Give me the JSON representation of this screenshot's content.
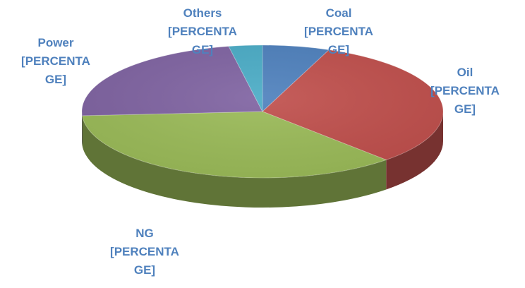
{
  "chart_data": {
    "type": "pie",
    "style": "3d",
    "categories": [
      "Coal",
      "Oil",
      "NG",
      "Power",
      "Others"
    ],
    "values": [
      6,
      32,
      36,
      23,
      3
    ],
    "colors": [
      "#4f81bd",
      "#c0504d",
      "#9bbb59",
      "#8064a2",
      "#4bacc6"
    ],
    "label_color": "#4f81bd",
    "labels": [
      {
        "name": "Coal",
        "line2": "[PERCENTA",
        "line3": "GE]"
      },
      {
        "name": "Oil",
        "line2": "[PERCENTA",
        "line3": "GE]"
      },
      {
        "name": "NG",
        "line2": "[PERCENTA",
        "line3": "GE]"
      },
      {
        "name": "Power",
        "line2": "[PERCENTA",
        "line3": "GE]"
      },
      {
        "name": "Others",
        "line2": "[PERCENTA",
        "line3": "GE]"
      }
    ],
    "legend": "none"
  }
}
